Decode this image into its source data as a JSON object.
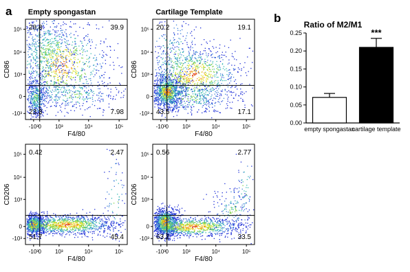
{
  "panels": {
    "a": "a",
    "b": "b"
  },
  "flow": {
    "columns": [
      "Empty spongastan",
      "Cartilage Template"
    ],
    "x_label": "F4/80",
    "x_ticks": [
      "-10³",
      "0",
      "10³",
      "10⁴",
      "10⁵"
    ],
    "y_ticks": [
      "10⁵",
      "10⁴",
      "10³",
      "0",
      "-10³"
    ],
    "rows": [
      {
        "y_label": "CD86",
        "quadrants": [
          {
            "ul": "28.8",
            "ur": "39.9",
            "ll": "23.3",
            "lr": "7.98"
          },
          {
            "ul": "20.2",
            "ur": "19.1",
            "ll": "43.5",
            "lr": "17.1"
          }
        ]
      },
      {
        "y_label": "CD206",
        "quadrants": [
          {
            "ul": "0.42",
            "ur": "2.47",
            "ll": "51.7",
            "lr": "45.4"
          },
          {
            "ul": "0.56",
            "ur": "2.77",
            "ll": "63.2",
            "lr": "33.5"
          }
        ]
      }
    ],
    "density_colors": [
      "#1a2bd6",
      "#3a7fd8",
      "#36b9b0",
      "#7fd14a",
      "#e6e020",
      "#f08a18",
      "#d8201c"
    ]
  },
  "chart_data": {
    "type": "bar",
    "title": "Ratio of M2/M1",
    "categories": [
      "empty spongastan",
      "cartilage template"
    ],
    "values": [
      0.071,
      0.21
    ],
    "errors": [
      0.011,
      0.025
    ],
    "bar_colors": [
      "#ffffff",
      "#000000"
    ],
    "ylim": [
      0,
      0.25
    ],
    "yticks": [
      0.0,
      0.05,
      0.1,
      0.15,
      0.2,
      0.25
    ],
    "ytick_labels": [
      "0.00",
      "0.05",
      "0.10",
      "0.15",
      "0.20",
      "0.25"
    ],
    "significance": [
      "",
      "***"
    ],
    "xlabel": "",
    "ylabel": ""
  }
}
